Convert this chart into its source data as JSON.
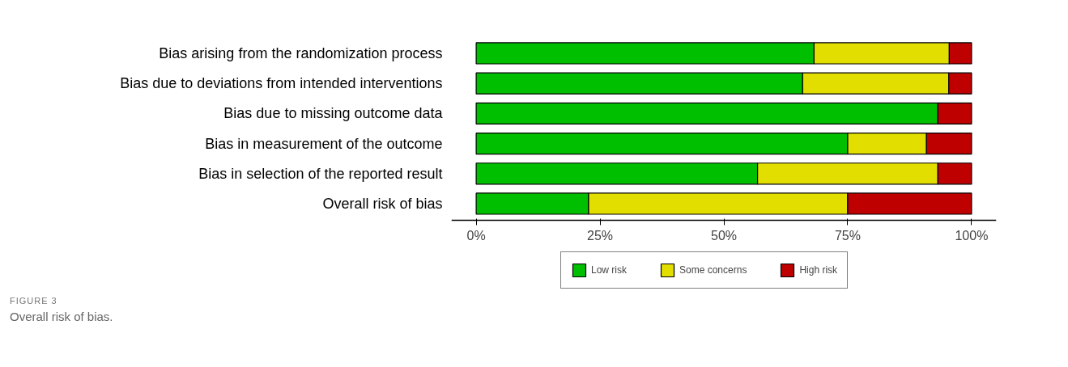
{
  "chart_data": {
    "type": "bar",
    "orientation": "horizontal",
    "stacked": true,
    "categories": [
      "Bias arising from the randomization process",
      "Bias due to deviations from intended interventions",
      "Bias due to missing outcome data",
      "Bias in measurement of the outcome",
      "Bias in selection of the reported result",
      "Overall risk of bias"
    ],
    "series": [
      {
        "name": "Low risk",
        "color": "#00bf00",
        "values": [
          68.2,
          65.9,
          93.2,
          75.0,
          56.8,
          22.7
        ]
      },
      {
        "name": "Some concerns",
        "color": "#e2df00",
        "values": [
          27.3,
          29.5,
          0,
          15.9,
          36.4,
          52.3
        ]
      },
      {
        "name": "High risk",
        "color": "#bf0000",
        "values": [
          4.5,
          4.6,
          6.8,
          9.1,
          6.8,
          25.0
        ]
      }
    ],
    "xlim": [
      -5,
      105
    ],
    "xticks": [
      {
        "value": 0,
        "label": "0%"
      },
      {
        "value": 25,
        "label": "25%"
      },
      {
        "value": 50,
        "label": "50%"
      },
      {
        "value": 75,
        "label": "75%"
      },
      {
        "value": 100,
        "label": "100%"
      }
    ],
    "grid": false,
    "legend": "bottom",
    "annotations": [
      "FIGURE 3",
      "Overall risk of bias."
    ]
  }
}
